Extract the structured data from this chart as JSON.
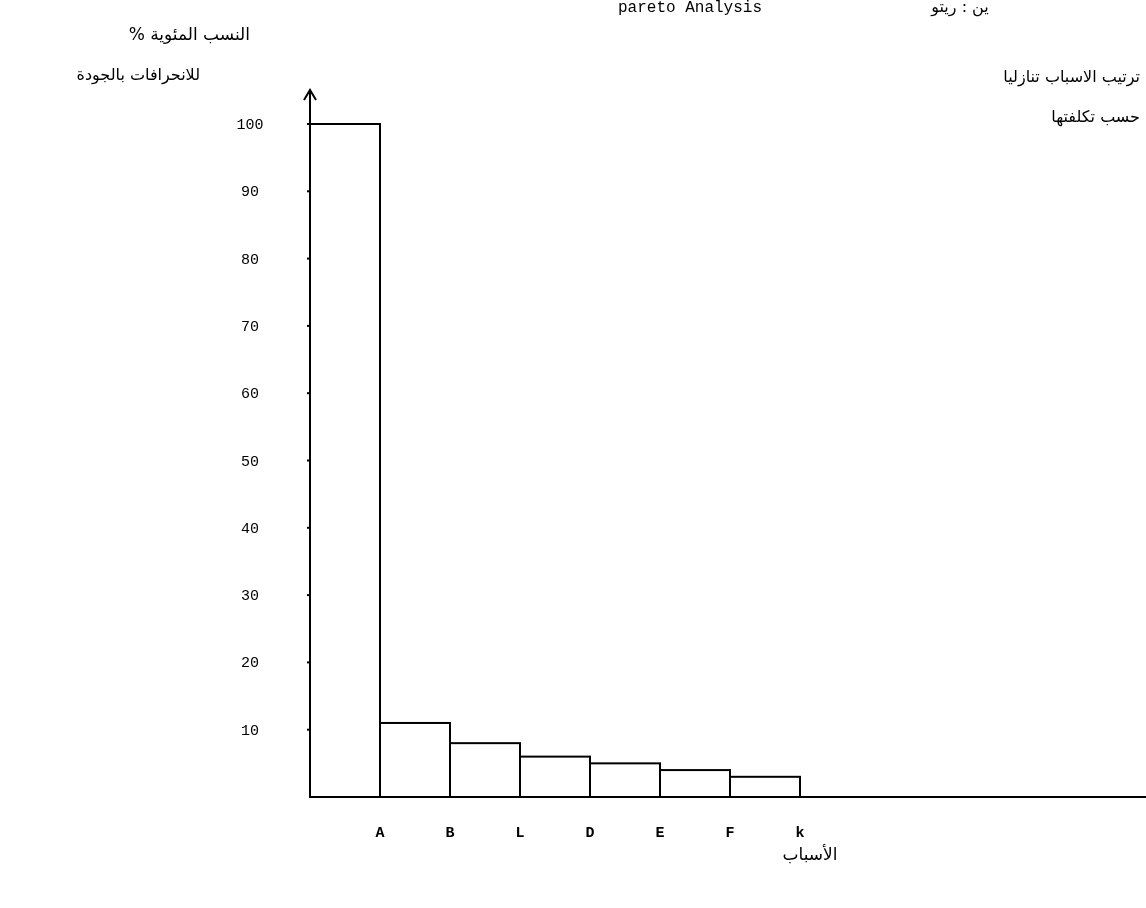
{
  "chart_data": {
    "type": "bar",
    "title": "pareto Analysis",
    "ylabel": "النسب المئوية %",
    "xlabel": "الأسباب",
    "categories": [
      "A",
      "B",
      "L",
      "D",
      "E",
      "F",
      "k"
    ],
    "values": [
      100,
      11,
      8,
      6,
      5,
      4,
      3
    ],
    "color": "#ffffff",
    "ylim": [
      0,
      100
    ],
    "yticks": [
      10,
      20,
      30,
      40,
      50,
      60,
      70,
      80,
      90,
      100
    ],
    "annotations": [
      "ين : ريتو",
      "ترتيب الاسباب تنازليا",
      "حسب تكلفتها",
      "للانحرافات بالجودة"
    ]
  }
}
